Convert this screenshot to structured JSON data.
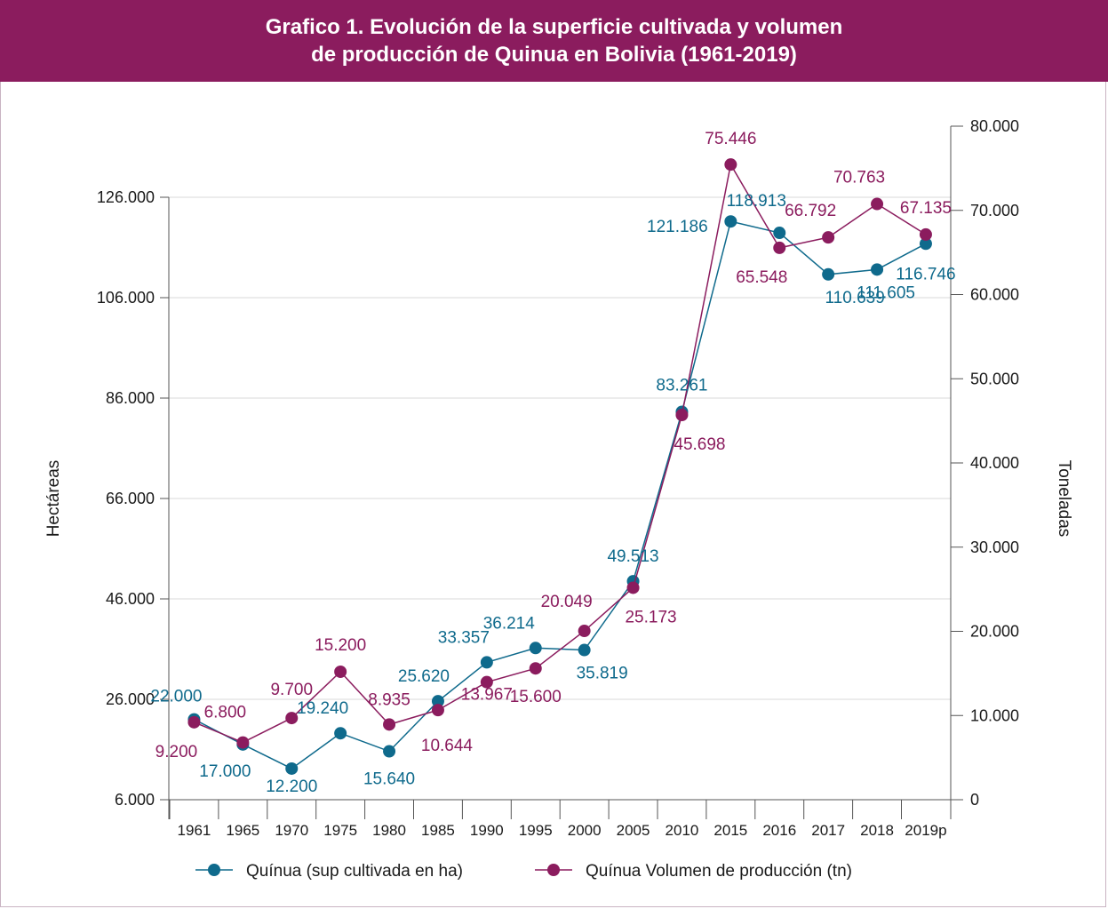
{
  "chart_data": {
    "type": "line",
    "title_line1": "Grafico 1. Evolución de la superficie cultivada y volumen",
    "title_line2": "de producción de Quinua en Bolivia (1961-2019)",
    "categories": [
      "1961",
      "1965",
      "1970",
      "1975",
      "1980",
      "1985",
      "1990",
      "1995",
      "2000",
      "2005",
      "2010",
      "2015",
      "2016",
      "2017",
      "2018",
      "2019p"
    ],
    "y_left": {
      "label": "Hectáreas",
      "ticks": [
        "6.000",
        "26.000",
        "46.000",
        "66.000",
        "86.000",
        "106.000",
        "126.000"
      ],
      "tick_values": [
        6000,
        26000,
        46000,
        66000,
        86000,
        106000,
        126000
      ],
      "ylim": [
        6000,
        126000
      ]
    },
    "y_right": {
      "label": "Toneladas",
      "ticks": [
        "0",
        "10.000",
        "20.000",
        "30.000",
        "40.000",
        "50.000",
        "60.000",
        "70.000",
        "80.000"
      ],
      "tick_values": [
        0,
        10000,
        20000,
        30000,
        40000,
        50000,
        60000,
        70000,
        80000
      ],
      "ylim": [
        0,
        80000
      ]
    },
    "grid": true,
    "legend_position": "bottom",
    "series": [
      {
        "name": "Quínua (sup cultivada en ha)",
        "axis": "left",
        "color": "#0f6a8c",
        "values": [
          22000,
          17000,
          12200,
          19240,
          15640,
          25620,
          33357,
          36214,
          35819,
          49513,
          83261,
          121186,
          118913,
          110639,
          111605,
          116746
        ],
        "labels": [
          "22.000",
          "17.000",
          "12.200",
          "19.240",
          "15.640",
          "25.620",
          "33.357",
          "36.214",
          "35.819",
          "49.513",
          "83.261",
          "121.186",
          "118.913",
          "110.639",
          "111.605",
          "116.746"
        ]
      },
      {
        "name": "Quínua Volumen de producción (tn)",
        "axis": "right",
        "color": "#8b1c5e",
        "values": [
          9200,
          6800,
          9700,
          15200,
          8935,
          10644,
          13967,
          15600,
          20049,
          25173,
          45698,
          75446,
          65548,
          66792,
          70763,
          67135
        ],
        "labels": [
          "9.200",
          "6.800",
          "9.700",
          "15.200",
          "8.935",
          "10.644",
          "13.967",
          "15.600",
          "20.049",
          "25.173",
          "45.698",
          "75.446",
          "65.548",
          "66.792",
          "70.763",
          "67.135"
        ]
      }
    ]
  }
}
